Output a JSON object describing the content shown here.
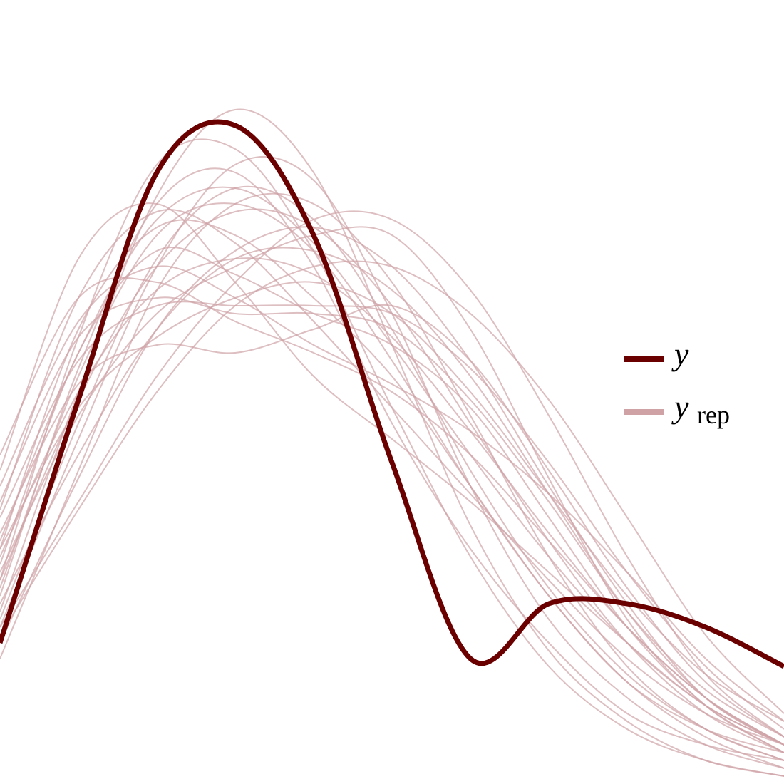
{
  "colors": {
    "y": "#6b0000",
    "yrep": "#cfa2a6",
    "background": "#ffffff"
  },
  "legend": {
    "placement": "right-middle",
    "items": [
      {
        "id": "y",
        "label": "y",
        "subscript": ""
      },
      {
        "id": "yrep",
        "label": "y",
        "subscript": "rep"
      }
    ]
  },
  "chart_data": {
    "type": "line",
    "title": "",
    "xlabel": "",
    "ylabel": "",
    "grid": false,
    "axes_visible": false,
    "xlim": [
      0,
      1
    ],
    "ylim": [
      0,
      1
    ],
    "x": [
      0.0,
      0.1,
      0.2,
      0.3,
      0.4,
      0.5,
      0.6,
      0.7,
      0.8,
      0.9,
      1.0
    ],
    "series": [
      {
        "id": "y",
        "name": "y",
        "role": "observed",
        "values": [
          0.18,
          0.49,
          0.78,
          0.84,
          0.7,
          0.41,
          0.16,
          0.23,
          0.23,
          0.2,
          0.15
        ]
      },
      {
        "id": "yrep",
        "name": "y_rep",
        "role": "replicated",
        "draws": [
          [
            0.24,
            0.53,
            0.74,
            0.78,
            0.66,
            0.46,
            0.3,
            0.18,
            0.09,
            0.05,
            0.03
          ],
          [
            0.3,
            0.58,
            0.71,
            0.7,
            0.62,
            0.52,
            0.38,
            0.24,
            0.13,
            0.07,
            0.04
          ],
          [
            0.2,
            0.44,
            0.66,
            0.79,
            0.77,
            0.6,
            0.38,
            0.21,
            0.11,
            0.05,
            0.02
          ],
          [
            0.35,
            0.62,
            0.73,
            0.69,
            0.59,
            0.48,
            0.37,
            0.26,
            0.16,
            0.09,
            0.05
          ],
          [
            0.27,
            0.47,
            0.6,
            0.66,
            0.7,
            0.7,
            0.58,
            0.39,
            0.21,
            0.1,
            0.04
          ],
          [
            0.4,
            0.67,
            0.74,
            0.64,
            0.52,
            0.44,
            0.36,
            0.27,
            0.18,
            0.1,
            0.05
          ],
          [
            0.18,
            0.39,
            0.58,
            0.68,
            0.71,
            0.66,
            0.54,
            0.38,
            0.23,
            0.11,
            0.05
          ],
          [
            0.32,
            0.51,
            0.56,
            0.55,
            0.58,
            0.61,
            0.54,
            0.4,
            0.25,
            0.13,
            0.06
          ],
          [
            0.22,
            0.5,
            0.75,
            0.86,
            0.78,
            0.56,
            0.33,
            0.17,
            0.08,
            0.03,
            0.01
          ],
          [
            0.28,
            0.55,
            0.68,
            0.65,
            0.6,
            0.56,
            0.48,
            0.34,
            0.2,
            0.1,
            0.04
          ],
          [
            0.36,
            0.57,
            0.62,
            0.6,
            0.6,
            0.58,
            0.49,
            0.36,
            0.22,
            0.12,
            0.06
          ],
          [
            0.16,
            0.4,
            0.63,
            0.74,
            0.74,
            0.64,
            0.47,
            0.29,
            0.15,
            0.07,
            0.03
          ],
          [
            0.3,
            0.48,
            0.57,
            0.62,
            0.64,
            0.6,
            0.5,
            0.37,
            0.24,
            0.14,
            0.08
          ],
          [
            0.25,
            0.52,
            0.7,
            0.74,
            0.68,
            0.54,
            0.38,
            0.24,
            0.13,
            0.06,
            0.02
          ],
          [
            0.42,
            0.62,
            0.64,
            0.59,
            0.55,
            0.5,
            0.42,
            0.31,
            0.2,
            0.11,
            0.05
          ],
          [
            0.2,
            0.36,
            0.52,
            0.64,
            0.72,
            0.72,
            0.63,
            0.47,
            0.29,
            0.14,
            0.06
          ],
          [
            0.26,
            0.57,
            0.79,
            0.81,
            0.68,
            0.48,
            0.29,
            0.15,
            0.07,
            0.03,
            0.01
          ],
          [
            0.34,
            0.54,
            0.61,
            0.61,
            0.61,
            0.6,
            0.53,
            0.41,
            0.27,
            0.15,
            0.07
          ],
          [
            0.21,
            0.46,
            0.67,
            0.76,
            0.72,
            0.58,
            0.4,
            0.25,
            0.14,
            0.07,
            0.03
          ],
          [
            0.29,
            0.5,
            0.63,
            0.67,
            0.65,
            0.57,
            0.45,
            0.32,
            0.2,
            0.11,
            0.05
          ],
          [
            0.38,
            0.59,
            0.66,
            0.62,
            0.56,
            0.51,
            0.45,
            0.37,
            0.27,
            0.16,
            0.08
          ],
          [
            0.23,
            0.42,
            0.58,
            0.67,
            0.68,
            0.63,
            0.52,
            0.37,
            0.22,
            0.11,
            0.05
          ],
          [
            0.31,
            0.55,
            0.72,
            0.76,
            0.69,
            0.56,
            0.42,
            0.29,
            0.18,
            0.1,
            0.05
          ],
          [
            0.19,
            0.35,
            0.5,
            0.61,
            0.66,
            0.66,
            0.6,
            0.49,
            0.34,
            0.19,
            0.09
          ],
          [
            0.26,
            0.49,
            0.66,
            0.73,
            0.71,
            0.61,
            0.46,
            0.31,
            0.18,
            0.09,
            0.04
          ]
        ]
      }
    ]
  }
}
